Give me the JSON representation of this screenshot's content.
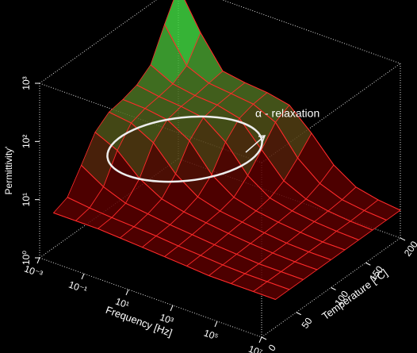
{
  "chart_data": {
    "type": "surface3d",
    "xlabel": "Frequency [Hz]",
    "ylabel": "Temperature [°C]",
    "zlabel": "Permittivity'",
    "annotation": "α - relaxation",
    "x": [
      0.001,
      0.01,
      0.1,
      1,
      10,
      100,
      1000,
      10000,
      100000,
      1000000,
      10000000
    ],
    "xlim": [
      0.001,
      10000000
    ],
    "xscale": "log",
    "xticks": [
      {
        "value": 0.001,
        "label": "10⁻³"
      },
      {
        "value": 0.1,
        "label": "10⁻¹"
      },
      {
        "value": 10,
        "label": "10¹"
      },
      {
        "value": 1000,
        "label": "10³"
      },
      {
        "value": 100000,
        "label": "10⁵"
      },
      {
        "value": 10000000,
        "label": "10⁷"
      }
    ],
    "ylim": [
      0,
      200
    ],
    "yticks": [
      0,
      50,
      100,
      150,
      200
    ],
    "zlim": [
      1,
      1000
    ],
    "zscale": "log",
    "zticks": [
      {
        "value": 1,
        "label": "10⁰"
      },
      {
        "value": 10,
        "label": "10¹"
      },
      {
        "value": 100,
        "label": "10²"
      },
      {
        "value": 1000,
        "label": "10³"
      }
    ],
    "line_color": "#ff2a2a",
    "surface_colors": [
      "#5a0000",
      "#3fd23f"
    ],
    "series": [
      {
        "name": "20",
        "temperature": 20,
        "values": [
          4,
          4,
          4,
          3.8,
          3.6,
          3.4,
          3.2,
          3,
          3,
          3,
          3
        ]
      },
      {
        "name": "40",
        "temperature": 40,
        "values": [
          5,
          4.5,
          4.2,
          4,
          3.8,
          3.5,
          3.3,
          3.1,
          3,
          3,
          3
        ]
      },
      {
        "name": "60",
        "temperature": 60,
        "values": [
          12,
          7,
          5,
          4.5,
          4,
          3.7,
          3.4,
          3.2,
          3,
          3,
          3
        ]
      },
      {
        "name": "80",
        "temperature": 80,
        "values": [
          30,
          20,
          9,
          5.5,
          4.5,
          4,
          3.6,
          3.3,
          3.1,
          3,
          3
        ]
      },
      {
        "name": "100",
        "temperature": 100,
        "values": [
          45,
          40,
          25,
          10,
          5.5,
          4.3,
          3.8,
          3.4,
          3.1,
          3,
          3
        ]
      },
      {
        "name": "120",
        "temperature": 120,
        "values": [
          50,
          48,
          42,
          25,
          9,
          5,
          4,
          3.5,
          3.2,
          3,
          3
        ]
      },
      {
        "name": "140",
        "temperature": 140,
        "values": [
          60,
          52,
          48,
          42,
          22,
          8,
          4.5,
          3.7,
          3.3,
          3.1,
          3
        ]
      },
      {
        "name": "160",
        "temperature": 160,
        "values": [
          90,
          58,
          50,
          47,
          38,
          15,
          6,
          4,
          3.4,
          3.1,
          3
        ]
      },
      {
        "name": "180",
        "temperature": 180,
        "values": [
          300,
          80,
          55,
          50,
          45,
          30,
          10,
          5,
          3.6,
          3.2,
          3
        ]
      },
      {
        "name": "200",
        "temperature": 200,
        "values": [
          900,
          200,
          60,
          52,
          48,
          40,
          18,
          7,
          4,
          3.3,
          3
        ]
      }
    ]
  }
}
